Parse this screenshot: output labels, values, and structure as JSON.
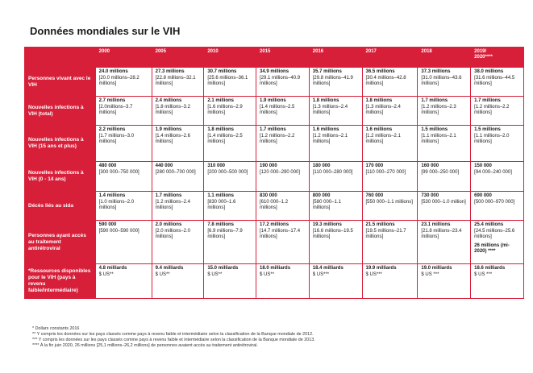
{
  "title": "Données mondiales sur le VIH",
  "columns": [
    "2000",
    "2005",
    "2010",
    "2015",
    "2016",
    "2017",
    "2018",
    "2019/\n2020****"
  ],
  "rows": [
    {
      "label": "Personnes vivant avec le VIH",
      "cells": [
        {
          "main": "24.0 millions",
          "range": "[20.0 millions–28.2 millions]"
        },
        {
          "main": "27.3 millions",
          "range": "[22.8 millions–32.1 millions]"
        },
        {
          "main": "30.7 millions",
          "range": "[25.6 millions–36.1 millions]"
        },
        {
          "main": "34.9 millions",
          "range": "[29.1 millions–40.9 millions]"
        },
        {
          "main": "35.7 millions",
          "range": "[29.8 millions–41.9 millions]"
        },
        {
          "main": "36.5 millions",
          "range": "[30.4 millions–42.8 millions]"
        },
        {
          "main": "37.3 millions",
          "range": "[31.0 millions–43.6 millions]"
        },
        {
          "main": "38.0 millions",
          "range": "[31.6 millions–44.5 millions]"
        }
      ]
    },
    {
      "label": "Nouvelles infections à VIH (total)",
      "cells": [
        {
          "main": "2.7 millions",
          "range": "[2.0millions–3.7 millions]"
        },
        {
          "main": "2.4 millions",
          "range": "[1.8 millions–3.2 millions]"
        },
        {
          "main": "2.1 millions",
          "range": "[1.6 millions–2.9 millions]"
        },
        {
          "main": "1.9 millions",
          "range": "[1.4 millions–2.5 millions]"
        },
        {
          "main": "1.8 millions",
          "range": "[1.3 millions–2.4 millions]"
        },
        {
          "main": "1.8 millions",
          "range": "[1.3 millions–2.4 millions]"
        },
        {
          "main": "1.7 millions",
          "range": "[1.2 millions–2.3 millions]"
        },
        {
          "main": "1.7 millions",
          "range": "[1.2 millions–2.2 millions]"
        }
      ]
    },
    {
      "label": "Nouvelles infections à VIH (15 ans et plus)",
      "cells": [
        {
          "main": "2.2 millions",
          "range": "[1.7 millions–3.0 millions]"
        },
        {
          "main": "1.9 millions",
          "range": "[1.4 millions–2.6 millions]"
        },
        {
          "main": "1.8 millions",
          "range": "[1.4 millions–2.5 millions]"
        },
        {
          "main": "1.7 millions",
          "range": "[1.2 millions–2.2 millions]"
        },
        {
          "main": "1.6 millions",
          "range": "[1.2 millions–2.1 millions]"
        },
        {
          "main": "1.6 millions",
          "range": "[1.2 millions–2.1 millions]"
        },
        {
          "main": "1.5 millions",
          "range": "[1.1 millions–2.1 millions]"
        },
        {
          "main": "1.5 millions",
          "range": "[1.1 millions–2.0 millions]"
        }
      ]
    },
    {
      "label": "Nouvelles infections à VIH (0 - 14 ans)",
      "cells": [
        {
          "main": "480 000",
          "range": "[300 000–750 000]"
        },
        {
          "main": "440 000",
          "range": "[280 000–700 000]"
        },
        {
          "main": "310 000",
          "range": "[200 000–500 000]"
        },
        {
          "main": "190 000",
          "range": "[120 000–290 000]"
        },
        {
          "main": "180 000",
          "range": "[110 000–280 000]"
        },
        {
          "main": "170 000",
          "range": "[110 000–270 000]"
        },
        {
          "main": "160 000",
          "range": "[99 000–250 000]"
        },
        {
          "main": "150 000",
          "range": "[94 000–240 000]"
        }
      ]
    },
    {
      "label": "Décès liés au sida",
      "cells": [
        {
          "main": "1.4 millions",
          "range": "[1.0 millions–2.0 millions]"
        },
        {
          "main": "1.7 millions",
          "range": "[1.2 millions–2.4 millions]"
        },
        {
          "main": "1.1 millions",
          "range": "[830 000–1.6 millions]"
        },
        {
          "main": "830 000",
          "range": "[610 000–1.2 millions]"
        },
        {
          "main": "800 000",
          "range": "[580 000–1.1 millions]"
        },
        {
          "main": "760 000",
          "range": "[550 000–1.1 millions]"
        },
        {
          "main": "730 000",
          "range": "[530 000–1.0 million]"
        },
        {
          "main": "690 000",
          "range": "[500 000–970 000]"
        }
      ]
    },
    {
      "label": "Personnes ayant accès au traitement antirétroviral",
      "cells": [
        {
          "main": "590 000",
          "range": "[590 000–590 000]"
        },
        {
          "main": "2.0 millions",
          "range": "[2.0 millions–2.0 millions]"
        },
        {
          "main": "7.8 millions",
          "range": "[6.9 millions–7.9 millions]"
        },
        {
          "main": "17.2 millions",
          "range": "[14.7 millions–17.4 millions]"
        },
        {
          "main": "19.3 millions",
          "range": "[16.6 millions–19.5 millions]"
        },
        {
          "main": "21.5 millions",
          "range": "[19.5 millions–21.7 millions]"
        },
        {
          "main": "23.1 millions",
          "range": "[21.8 millions–23.4 millions]"
        },
        {
          "main": "25.4 millions",
          "range": "[24.5 millions–25.6 millions]",
          "note": "26 millions (mi-2020) ****"
        }
      ]
    },
    {
      "label": "*Ressources disponibles pour le VIH (pays à revenu faible/intermédiaire)",
      "cells": [
        {
          "main": "4.8 milliards",
          "range": "$ US**"
        },
        {
          "main": "9.4 milliards",
          "range": "$ US**"
        },
        {
          "main": "15.0 milliards",
          "range": "$ US**"
        },
        {
          "main": "18.0 milliards",
          "range": "$ US**"
        },
        {
          "main": "18.4 milliards",
          "range": "$ US***"
        },
        {
          "main": "19.9 milliards",
          "range": "$ US***"
        },
        {
          "main": "19.0 milliards",
          "range": "$ US ***"
        },
        {
          "main": "18.6 milliards",
          "range": "$ US ***"
        }
      ]
    }
  ],
  "footnotes": [
    "* Dollars constants 2016",
    "** Y compris les données sur les pays classés comme pays à revenu faible et intermédiaire selon la classification de la Banque mondiale de 2012.",
    "*** Y compris les données sur les pays classés comme pays à revenu faible et intermédiaire selon la classification de la Banque mondiale de 2013.",
    "**** À la fin juin 2020, 26 millions [25,1 millions–26,2 millions] de personnes avaient accès au traitement antirétroviral."
  ]
}
